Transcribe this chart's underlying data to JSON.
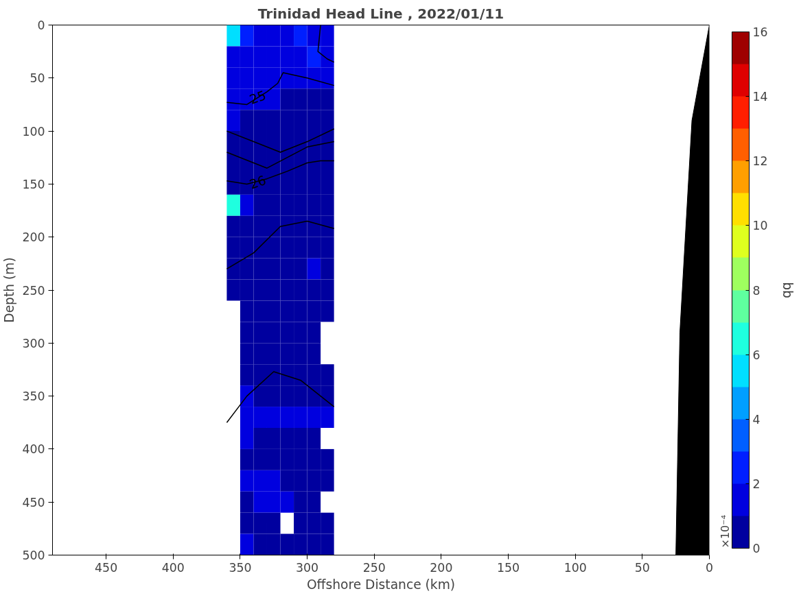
{
  "chart_data": {
    "type": "heatmap",
    "title": "Trinidad Head Line , 2022/01/11",
    "xlabel": "Offshore Distance (km)",
    "ylabel": "Depth (m)",
    "clabel": "bb",
    "xlim": [
      490,
      0
    ],
    "xticks": [
      450,
      400,
      350,
      300,
      250,
      200,
      150,
      100,
      50,
      0
    ],
    "ylim": [
      500,
      0
    ],
    "yticks": [
      0,
      50,
      100,
      150,
      200,
      250,
      300,
      350,
      400,
      450,
      500
    ],
    "clim": [
      0,
      16
    ],
    "cticks": [
      0,
      2,
      4,
      6,
      8,
      10,
      12,
      14,
      16
    ],
    "x": [
      355,
      345,
      335,
      325,
      315,
      305,
      295,
      285
    ],
    "y": [
      10,
      30,
      50,
      70,
      90,
      110,
      130,
      150,
      170,
      190,
      210,
      230,
      250,
      270,
      290,
      310,
      330,
      350,
      370,
      390,
      410,
      430,
      450,
      470,
      490
    ],
    "cells": [
      [
        5,
        2.5,
        1.5,
        1.5,
        1.5,
        2.5,
        1.5,
        1.5
      ],
      [
        1.5,
        1.5,
        1.5,
        1.5,
        1.5,
        1.5,
        2.5,
        1.5
      ],
      [
        1.5,
        1.5,
        1.5,
        1.5,
        1.5,
        1.5,
        1.5,
        1.5
      ],
      [
        1.5,
        1.5,
        1.5,
        1.5,
        0.5,
        0.5,
        0.5,
        0.5
      ],
      [
        1.5,
        0.5,
        0.5,
        0.5,
        0.5,
        0.5,
        0.5,
        0.5
      ],
      [
        0.5,
        0.5,
        0.5,
        0.5,
        0.5,
        0.5,
        0.5,
        0.5
      ],
      [
        0.5,
        0.5,
        0.5,
        0.5,
        0.5,
        0.5,
        0.5,
        0.5
      ],
      [
        0.5,
        0.5,
        0.5,
        0.5,
        0.5,
        0.5,
        0.5,
        0.5
      ],
      [
        6,
        1.5,
        0.5,
        0.5,
        0.5,
        0.5,
        0.5,
        0.5
      ],
      [
        0.5,
        0.5,
        0.5,
        0.5,
        0.5,
        0.5,
        0.5,
        0.5
      ],
      [
        0.5,
        0.5,
        0.5,
        0.5,
        0.5,
        0.5,
        0.5,
        0.5
      ],
      [
        0.5,
        0.5,
        0.5,
        0.5,
        0.5,
        0.5,
        1.5,
        0.5
      ],
      [
        0.5,
        0.5,
        0.5,
        0.5,
        0.5,
        0.5,
        0.5,
        0.5
      ],
      [
        null,
        0.5,
        0.5,
        0.5,
        0.5,
        0.5,
        0.5,
        0.5
      ],
      [
        null,
        0.5,
        0.5,
        0.5,
        0.5,
        0.5,
        0.5,
        null
      ],
      [
        null,
        0.5,
        0.5,
        0.5,
        0.5,
        0.5,
        0.5,
        null
      ],
      [
        null,
        0.5,
        0.5,
        0.5,
        0.5,
        0.5,
        0.5,
        0.5
      ],
      [
        null,
        1.5,
        0.5,
        0.5,
        0.5,
        0.5,
        0.5,
        0.5
      ],
      [
        null,
        1.5,
        1.5,
        1.5,
        1.5,
        1.5,
        1.5,
        1.5
      ],
      [
        null,
        1.5,
        0.5,
        0.5,
        0.5,
        0.5,
        0.5,
        null
      ],
      [
        null,
        0.5,
        0.5,
        0.5,
        0.5,
        0.5,
        0.5,
        0.5
      ],
      [
        null,
        1.5,
        1.5,
        1.5,
        0.5,
        0.5,
        0.5,
        0.5
      ],
      [
        null,
        0.5,
        1.5,
        1.5,
        1.5,
        0.5,
        0.5,
        null
      ],
      [
        null,
        0.5,
        0.5,
        0.5,
        null,
        0.5,
        0.5,
        0.5
      ],
      [
        null,
        1.5,
        0.5,
        0.5,
        0.5,
        0.5,
        0.5,
        0.5
      ]
    ],
    "series": [
      {
        "type": "area",
        "color": "#000000",
        "x": [
          0,
          25,
          22,
          13,
          0
        ],
        "values": [
          500,
          500,
          290,
          90,
          0
        ]
      },
      {
        "type": "line",
        "color": "#000000",
        "x": [
          360,
          345,
          330,
          322,
          318,
          300,
          280
        ],
        "values": [
          73,
          75,
          63,
          55,
          45,
          50,
          57
        ]
      },
      {
        "type": "line",
        "color": "#000000",
        "x": [
          360,
          345,
          330,
          315,
          300,
          290,
          280
        ],
        "values": [
          147,
          150,
          145,
          138,
          130,
          128,
          128
        ]
      },
      {
        "type": "line",
        "color": "#000000",
        "x": [
          360,
          340,
          320,
          300,
          280
        ],
        "values": [
          100,
          110,
          120,
          110,
          98
        ]
      },
      {
        "type": "line",
        "color": "#000000",
        "x": [
          360,
          330,
          300,
          280
        ],
        "values": [
          120,
          135,
          115,
          110
        ]
      },
      {
        "type": "line",
        "color": "#000000",
        "x": [
          360,
          340,
          320,
          300,
          280
        ],
        "values": [
          230,
          215,
          190,
          185,
          192
        ]
      },
      {
        "type": "line",
        "color": "#000000",
        "x": [
          360,
          345,
          325,
          305,
          280
        ],
        "values": [
          375,
          350,
          327,
          335,
          360
        ]
      },
      {
        "type": "line",
        "color": "#000000",
        "x": [
          290,
          292,
          285,
          280
        ],
        "values": [
          0,
          25,
          32,
          35
        ]
      }
    ],
    "annotations": [
      "×10⁻⁴",
      {
        "text": "25",
        "x": 337,
        "y": 68
      },
      {
        "text": "26",
        "x": 337,
        "y": 148
      }
    ]
  }
}
